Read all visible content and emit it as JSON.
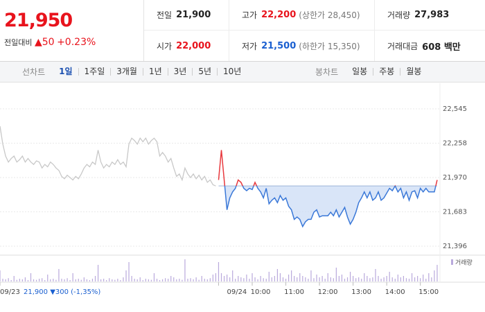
{
  "quote": {
    "price": "21,950",
    "change_label": "전일대비",
    "change": "▲50",
    "rate": "+0.23%"
  },
  "stats": [
    {
      "label": "전일",
      "value": "21,900",
      "color": "#222222"
    },
    {
      "label": "고가",
      "value": "22,200",
      "note": "(상한가 28,450)",
      "color": "#e8131c"
    },
    {
      "label": "거래량",
      "value": "27,983",
      "color": "#222222"
    },
    {
      "label": "시가",
      "value": "22,000",
      "color": "#e8131c"
    },
    {
      "label": "저가",
      "value": "21,500",
      "note": "(하한가 15,350)",
      "color": "#1a5fd0"
    },
    {
      "label": "거래대금",
      "value": "608 백만",
      "color": "#222222"
    }
  ],
  "tabs": {
    "line_label": "선차트",
    "line": [
      "1일",
      "1주일",
      "3개월",
      "1년",
      "3년",
      "5년",
      "10년"
    ],
    "active_index": 0,
    "candle_label": "봉차트",
    "candle": [
      "일봉",
      "주봉",
      "월봉"
    ]
  },
  "chart_data": {
    "type": "line",
    "xlim": [
      0,
      157
    ],
    "xticks": [
      {
        "value": 0,
        "label": "09/23"
      },
      {
        "value": 78,
        "label": "09/24"
      },
      {
        "value": 90,
        "label": "10:00"
      },
      {
        "value": 102,
        "label": "11:00"
      },
      {
        "value": 114,
        "label": "12:00"
      },
      {
        "value": 126,
        "label": "13:00"
      },
      {
        "value": 138,
        "label": "14:00"
      },
      {
        "value": 150,
        "label": "15:00"
      }
    ],
    "ylim": [
      21338,
      22731
    ],
    "yticks": [
      {
        "value": 22545,
        "label": "22,545"
      },
      {
        "value": 22258,
        "label": "22,258"
      },
      {
        "value": 21970,
        "label": "21,970"
      },
      {
        "value": 21683,
        "label": "21,683"
      },
      {
        "value": 21396,
        "label": "21,396"
      }
    ],
    "grid": true,
    "baseline": 21900,
    "area_color": "#c9daf5",
    "series": [
      {
        "color": "#c8c8c8",
        "values": [
          22400,
          22250,
          22150,
          22100,
          22130,
          22150,
          22100,
          22120,
          22150,
          22100,
          22130,
          22100,
          22080,
          22110,
          22100,
          22050,
          22080,
          22060,
          22100,
          22080,
          22050,
          22030,
          21980,
          21960,
          21990,
          21970,
          21950,
          21980,
          21960,
          22000,
          22050,
          22080,
          22060,
          22100,
          22080,
          22200,
          22100,
          22050,
          22080,
          22060,
          22100,
          22080,
          22120,
          22080,
          22100,
          22060,
          22250,
          22300,
          22280,
          22250,
          22300,
          22270,
          22300,
          22250,
          22280,
          22300,
          22270,
          22150,
          22180,
          22150,
          22100,
          22130,
          22050,
          21980,
          22000,
          21950,
          22050,
          22000,
          21970,
          22000,
          21960,
          21990,
          21950,
          21980,
          21930,
          21950,
          21910,
          21900
        ]
      },
      {
        "color": "#3a78d8",
        "color_up": "#e8383d",
        "values": [
          null,
          null,
          null,
          null,
          null,
          null,
          null,
          null,
          null,
          null,
          null,
          null,
          null,
          null,
          null,
          null,
          null,
          null,
          null,
          null,
          null,
          null,
          null,
          null,
          null,
          null,
          null,
          null,
          null,
          null,
          null,
          null,
          null,
          null,
          null,
          null,
          null,
          null,
          null,
          null,
          null,
          null,
          null,
          null,
          null,
          null,
          null,
          null,
          null,
          null,
          null,
          null,
          null,
          null,
          null,
          null,
          null,
          null,
          null,
          null,
          null,
          null,
          null,
          null,
          null,
          null,
          null,
          null,
          null,
          null,
          null,
          null,
          null,
          null,
          null,
          null,
          null,
          null,
          21950,
          22200,
          21950,
          21700,
          21800,
          21850,
          21880,
          21950,
          21930,
          21880,
          21860,
          21880,
          21870,
          21930,
          21880,
          21850,
          21800,
          21880,
          21750,
          21780,
          21800,
          21760,
          21820,
          21780,
          21800,
          21730,
          21700,
          21620,
          21640,
          21620,
          21560,
          21600,
          21620,
          21620,
          21680,
          21700,
          21640,
          21650,
          21650,
          21650,
          21680,
          21650,
          21700,
          21640,
          21680,
          21720,
          21640,
          21580,
          21620,
          21680,
          21760,
          21800,
          21850,
          21800,
          21850,
          21780,
          21800,
          21850,
          21780,
          21800,
          21840,
          21880,
          21860,
          21900,
          21850,
          21880,
          21800,
          21850,
          21780,
          21850,
          21860,
          21800,
          21880,
          21850,
          21880,
          21850,
          21850,
          21850,
          21950
        ]
      }
    ],
    "volume": {
      "name": "거래량",
      "color": "#b9a9dc",
      "ylim": [
        0,
        90
      ],
      "values": [
        40,
        10,
        8,
        12,
        5,
        20,
        6,
        10,
        8,
        15,
        5,
        30,
        8,
        6,
        10,
        12,
        5,
        25,
        8,
        10,
        6,
        45,
        10,
        8,
        12,
        5,
        30,
        8,
        10,
        6,
        15,
        8,
        5,
        10,
        20,
        60,
        8,
        10,
        5,
        12,
        8,
        6,
        10,
        5,
        15,
        40,
        70,
        20,
        10,
        8,
        15,
        5,
        10,
        8,
        6,
        30,
        10,
        5,
        8,
        12,
        10,
        20,
        15,
        8,
        10,
        6,
        80,
        10,
        12,
        8,
        15,
        6,
        20,
        10,
        8,
        12,
        25,
        30,
        70,
        30,
        20,
        25,
        15,
        40,
        10,
        20,
        15,
        12,
        25,
        10,
        30,
        15,
        8,
        20,
        12,
        10,
        35,
        15,
        20,
        45,
        30,
        15,
        10,
        25,
        40,
        20,
        15,
        30,
        20,
        15,
        10,
        40,
        12,
        25,
        15,
        20,
        10,
        30,
        15,
        12,
        50,
        20,
        25,
        10,
        15,
        35,
        20,
        12,
        15,
        10,
        30,
        20,
        12,
        15,
        45,
        20,
        10,
        15,
        20,
        35,
        15,
        10,
        25,
        15,
        20,
        12,
        10,
        30,
        15,
        20,
        12,
        25,
        10,
        30,
        15,
        40,
        60
      ]
    },
    "prev_day_note": {
      "price": "21,900",
      "change": "▼300",
      "rate": "(-1,35%)"
    }
  }
}
